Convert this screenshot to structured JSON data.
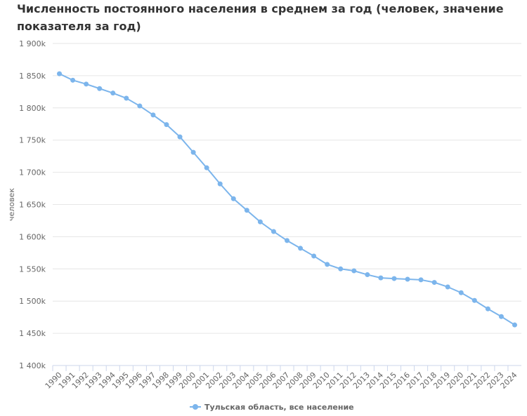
{
  "chart_data": {
    "type": "line",
    "title": "Численность постоянного населения в среднем за год (человек, значение показателя за год)",
    "y_label": "человек",
    "categories": [
      "1990",
      "1991",
      "1992",
      "1993",
      "1994",
      "1995",
      "1996",
      "1997",
      "1998",
      "1999",
      "2000",
      "2001",
      "2002",
      "2003",
      "2004",
      "2005",
      "2006",
      "2007",
      "2008",
      "2009",
      "2010",
      "2011",
      "2012",
      "2013",
      "2014",
      "2015",
      "2016",
      "2017",
      "2018",
      "2019",
      "2020",
      "2021",
      "2022",
      "2023",
      "2024"
    ],
    "series": [
      {
        "name": "Тульская область, все население",
        "color": "#7cb5ec",
        "values": [
          1853000,
          1843000,
          1837000,
          1830000,
          1823000,
          1815000,
          1803000,
          1789000,
          1774000,
          1755000,
          1731000,
          1707000,
          1682000,
          1659000,
          1641000,
          1623000,
          1608000,
          1594000,
          1582000,
          1570000,
          1557000,
          1550000,
          1547000,
          1541000,
          1536000,
          1535000,
          1534000,
          1533000,
          1529000,
          1522000,
          1513000,
          1501000,
          1488000,
          1476000,
          1463000
        ]
      }
    ],
    "ylim": [
      1400000,
      1900000
    ],
    "yticks": [
      {
        "value": 1400000,
        "label": "1 400k"
      },
      {
        "value": 1450000,
        "label": "1 450k"
      },
      {
        "value": 1500000,
        "label": "1 500k"
      },
      {
        "value": 1550000,
        "label": "1 550k"
      },
      {
        "value": 1600000,
        "label": "1 600k"
      },
      {
        "value": 1650000,
        "label": "1 650k"
      },
      {
        "value": 1700000,
        "label": "1 700k"
      },
      {
        "value": 1750000,
        "label": "1 750k"
      },
      {
        "value": 1800000,
        "label": "1 800k"
      },
      {
        "value": 1850000,
        "label": "1 850k"
      },
      {
        "value": 1900000,
        "label": "1 900k"
      }
    ],
    "grid": true,
    "legend": "bottom"
  }
}
